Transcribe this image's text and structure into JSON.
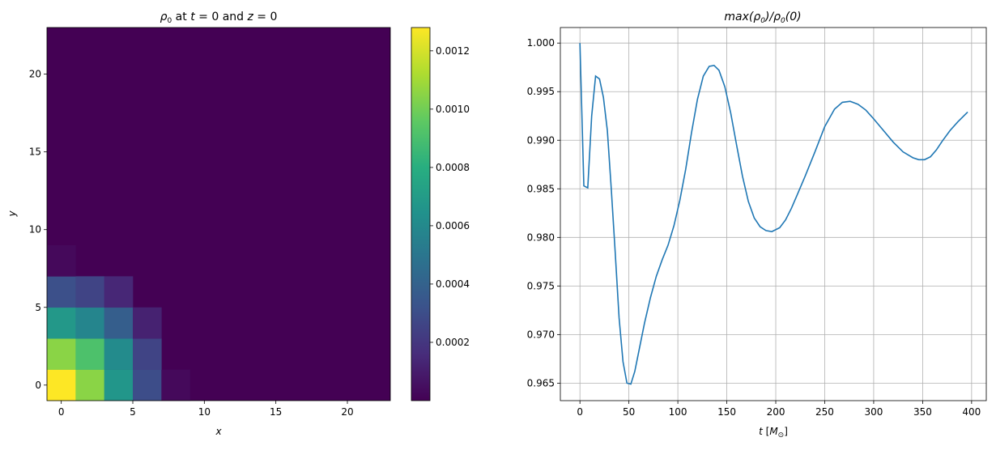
{
  "chart_data": [
    {
      "type": "heatmap",
      "title": "ρ₀ at t = 0 and z = 0",
      "xlabel": "x",
      "ylabel": "y",
      "xlim": [
        -1,
        23
      ],
      "ylim": [
        -1,
        23
      ],
      "xticks": [
        0,
        5,
        10,
        15,
        20
      ],
      "yticks": [
        0,
        5,
        10,
        15,
        20
      ],
      "colormap": "viridis",
      "colorbar": {
        "range": [
          0.0,
          0.00128
        ],
        "ticks": [
          "0.0002",
          "0.0004",
          "0.0006",
          "0.0008",
          "0.0010",
          "0.0012"
        ],
        "tick_values": [
          0.0002,
          0.0004,
          0.0006,
          0.0008,
          0.001,
          0.0012
        ]
      },
      "cell_size": 2,
      "cells": [
        {
          "x": 0,
          "y": 0,
          "value": 0.00128
        },
        {
          "x": 2,
          "y": 0,
          "value": 0.00105
        },
        {
          "x": 4,
          "y": 0,
          "value": 0.00067
        },
        {
          "x": 6,
          "y": 0,
          "value": 0.0003
        },
        {
          "x": 8,
          "y": 0,
          "value": 3e-05
        },
        {
          "x": 0,
          "y": 2,
          "value": 0.00105
        },
        {
          "x": 2,
          "y": 2,
          "value": 0.00091
        },
        {
          "x": 4,
          "y": 2,
          "value": 0.00061
        },
        {
          "x": 6,
          "y": 2,
          "value": 0.00026
        },
        {
          "x": 0,
          "y": 4,
          "value": 0.00068
        },
        {
          "x": 2,
          "y": 4,
          "value": 0.00058
        },
        {
          "x": 4,
          "y": 4,
          "value": 0.00038
        },
        {
          "x": 6,
          "y": 4,
          "value": 0.00012
        },
        {
          "x": 0,
          "y": 6,
          "value": 0.00031
        },
        {
          "x": 2,
          "y": 6,
          "value": 0.00026
        },
        {
          "x": 4,
          "y": 6,
          "value": 0.00014
        },
        {
          "x": 0,
          "y": 8,
          "value": 3e-05
        }
      ]
    },
    {
      "type": "line",
      "title": "max(ρ₀)/ρ₀(0)",
      "xlabel": "t [M⊙]",
      "ylabel": "",
      "xlim": [
        -20,
        415
      ],
      "ylim": [
        0.9632,
        1.0016
      ],
      "xticks": [
        0,
        50,
        100,
        150,
        200,
        250,
        300,
        350,
        400
      ],
      "yticks": [
        "0.965",
        "0.970",
        "0.975",
        "0.980",
        "0.985",
        "0.990",
        "0.995",
        "1.000"
      ],
      "ytick_values": [
        0.965,
        0.97,
        0.975,
        0.98,
        0.985,
        0.99,
        0.995,
        1.0
      ],
      "grid": true,
      "color": "#1f77b4",
      "series": [
        {
          "x": [
            0,
            4,
            8,
            12,
            16,
            20,
            24,
            28,
            32,
            36,
            40,
            44,
            48,
            52,
            56,
            60,
            66,
            72,
            78,
            84,
            90,
            96,
            102,
            108,
            114,
            120,
            126,
            132,
            137,
            142,
            148,
            154,
            160,
            166,
            172,
            178,
            184,
            190,
            196,
            204,
            210,
            216,
            222,
            230,
            240,
            250,
            260,
            268,
            276,
            284,
            292,
            300,
            310,
            320,
            330,
            340,
            346,
            352,
            358,
            364,
            370,
            378,
            386,
            396
          ],
          "y": [
            1.0,
            0.9853,
            0.9851,
            0.9925,
            0.9966,
            0.9963,
            0.9944,
            0.991,
            0.985,
            0.9785,
            0.9717,
            0.9672,
            0.965,
            0.9649,
            0.9662,
            0.9682,
            0.9712,
            0.9738,
            0.976,
            0.9777,
            0.9792,
            0.9812,
            0.9838,
            0.987,
            0.9908,
            0.9942,
            0.9966,
            0.9976,
            0.9977,
            0.9972,
            0.9955,
            0.9928,
            0.9895,
            0.9863,
            0.9837,
            0.982,
            0.9811,
            0.9807,
            0.9806,
            0.981,
            0.9818,
            0.983,
            0.9844,
            0.9863,
            0.9888,
            0.9914,
            0.9932,
            0.9939,
            0.994,
            0.9937,
            0.9931,
            0.9922,
            0.991,
            0.9898,
            0.9888,
            0.9882,
            0.988,
            0.988,
            0.9883,
            0.989,
            0.9899,
            0.991,
            0.9919,
            0.9929
          ]
        }
      ]
    }
  ]
}
